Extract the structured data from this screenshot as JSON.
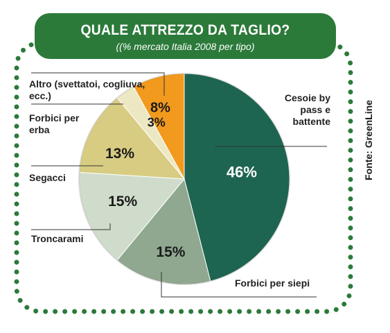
{
  "header": {
    "title": "QUALE ATTREZZO DA TAGLIO?",
    "subtitle": "((% mercato Italia 2008 per tipo)"
  },
  "source": "Fonte: GreenLine",
  "chart_data": {
    "type": "pie",
    "title": "QUALE ATTREZZO DA TAGLIO?",
    "subtitle": "((% mercato Italia 2008 per tipo)",
    "slices": [
      {
        "label": "Cesoie by\npass e\nbattente",
        "value": 46,
        "value_label": "46%",
        "color": "#1e6551"
      },
      {
        "label": "Forbici per siepi",
        "value": 15,
        "value_label": "15%",
        "color": "#8fa88f"
      },
      {
        "label": "Troncarami",
        "value": 15,
        "value_label": "15%",
        "color": "#cfdccb"
      },
      {
        "label": "Segacci",
        "value": 13,
        "value_label": "13%",
        "color": "#d8cc82"
      },
      {
        "label": "Forbici per\nerba",
        "value": 3,
        "value_label": "3%",
        "color": "#ede8c4"
      },
      {
        "label": "Altro (svettatoi, cogliuva,\necc.)",
        "value": 8,
        "value_label": "8%",
        "color": "#f29a1e"
      }
    ],
    "colors": {
      "header_bg": "#2c7a3a",
      "border_dots": "#2c7a3a",
      "leader_lines": "#333333",
      "value_text_dark": "#1a1a1a",
      "value_text_light": "#ffffff"
    }
  }
}
